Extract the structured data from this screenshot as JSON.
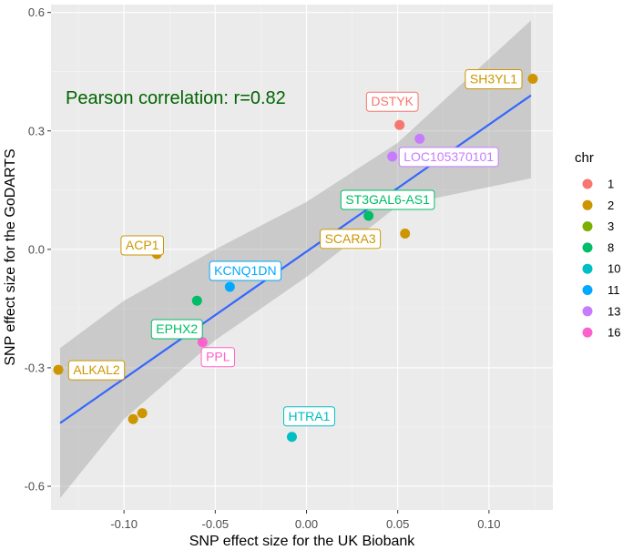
{
  "chart_data": {
    "type": "scatter",
    "xlabel": "SNP effect size for the UK Biobank",
    "ylabel": "SNP effect size for the GoDARTS",
    "xlim": [
      -0.14,
      0.135
    ],
    "ylim": [
      -0.66,
      0.62
    ],
    "x_ticks": [
      -0.1,
      -0.05,
      0.0,
      0.05,
      0.1
    ],
    "x_tick_labels": [
      "-0.10",
      "-0.05",
      "0.00",
      "0.05",
      "0.10"
    ],
    "y_ticks": [
      -0.6,
      -0.3,
      0.0,
      0.3,
      0.6
    ],
    "y_tick_labels": [
      "-0.6",
      "-0.3",
      "0.0",
      "0.3",
      "0.6"
    ],
    "annotation": "Pearson correlation: r=0.82",
    "annotation_color": "#006400",
    "legend": {
      "title": "chr",
      "entries": [
        {
          "label": "1",
          "color": "#F8766D"
        },
        {
          "label": "2",
          "color": "#CD9600"
        },
        {
          "label": "3",
          "color": "#7CAE00"
        },
        {
          "label": "8",
          "color": "#00BE67"
        },
        {
          "label": "10",
          "color": "#00BFC4"
        },
        {
          "label": "11",
          "color": "#00A9FF"
        },
        {
          "label": "13",
          "color": "#C77CFF"
        },
        {
          "label": "16",
          "color": "#FF61CC"
        }
      ]
    },
    "regression": {
      "line": [
        [
          -0.135,
          -0.44
        ],
        [
          0.123,
          0.39
        ]
      ],
      "line_color": "#3366FF",
      "band_upper": [
        [
          -0.135,
          -0.25
        ],
        [
          -0.1,
          -0.13
        ],
        [
          -0.05,
          0.0
        ],
        [
          0.0,
          0.12
        ],
        [
          0.05,
          0.27
        ],
        [
          0.123,
          0.58
        ]
      ],
      "band_lower": [
        [
          -0.135,
          -0.63
        ],
        [
          -0.1,
          -0.43
        ],
        [
          -0.05,
          -0.23
        ],
        [
          0.0,
          -0.07
        ],
        [
          0.05,
          0.11
        ],
        [
          0.123,
          0.18
        ]
      ]
    },
    "points": [
      {
        "x": 0.051,
        "y": 0.315,
        "chr": "1",
        "label": "DSTYK"
      },
      {
        "x": 0.124,
        "y": 0.432,
        "chr": "2",
        "label": "SH3YL1"
      },
      {
        "x": -0.082,
        "y": -0.012,
        "chr": "2",
        "label": "ACP1"
      },
      {
        "x": -0.136,
        "y": -0.305,
        "chr": "2",
        "label": "ALKAL2"
      },
      {
        "x": 0.054,
        "y": 0.04,
        "chr": "2",
        "label": ""
      },
      {
        "x": -0.09,
        "y": -0.415,
        "chr": "2",
        "label": ""
      },
      {
        "x": -0.095,
        "y": -0.43,
        "chr": "2",
        "label": ""
      },
      {
        "x": 0.034,
        "y": 0.085,
        "chr": "8",
        "label": "ST3GAL6-AS1"
      },
      {
        "x": -0.06,
        "y": -0.13,
        "chr": "8",
        "label": ""
      },
      {
        "x": -0.008,
        "y": -0.475,
        "chr": "10",
        "label": "HTRA1"
      },
      {
        "x": -0.042,
        "y": -0.095,
        "chr": "11",
        "label": "KCNQ1DN"
      },
      {
        "x": 0.062,
        "y": 0.28,
        "chr": "13",
        "label": ""
      },
      {
        "x": 0.047,
        "y": 0.235,
        "chr": "13",
        "label": "LOC105370101"
      },
      {
        "x": -0.057,
        "y": -0.235,
        "chr": "16",
        "label": "PPL"
      }
    ],
    "extra_labels": [
      {
        "text": "SCARA3",
        "chr": "2"
      },
      {
        "text": "EPHX2",
        "chr": "8"
      }
    ]
  }
}
